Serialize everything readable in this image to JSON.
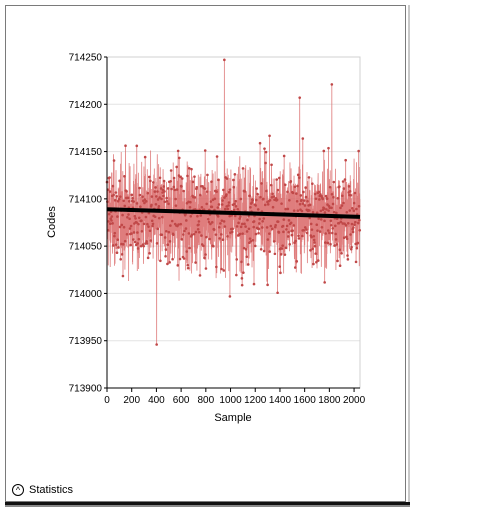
{
  "statistics_label": "Statistics",
  "icons": {
    "statistics_toggle": "chevron-up-circle-icon"
  },
  "colors": {
    "series": "#d96666",
    "series_dark": "#c04848",
    "trend": "#000000",
    "grid": "#e3e3e3"
  },
  "chart_data": {
    "type": "line",
    "title": "",
    "xlabel": "Sample",
    "ylabel": "Codes",
    "xlim": [
      0,
      2048
    ],
    "ylim": [
      713900,
      714250
    ],
    "x_ticks": [
      0,
      200,
      400,
      600,
      800,
      1000,
      1200,
      1400,
      1600,
      1800,
      2000
    ],
    "y_ticks": [
      713900,
      713950,
      714000,
      714050,
      714100,
      714150,
      714200,
      714250
    ],
    "grid": true,
    "series": [
      {
        "samples": 2048,
        "approx_mean": 714082,
        "approx_min": 713945,
        "approx_max": 714247,
        "notable_points": [
          [
            950,
            714247
          ],
          [
            402,
            713946
          ],
          [
            1820,
            714221
          ],
          [
            1560,
            714207
          ]
        ]
      },
      {
        "trend": true,
        "x": [
          0,
          2048
        ],
        "values": [
          714089,
          714081
        ]
      }
    ]
  }
}
